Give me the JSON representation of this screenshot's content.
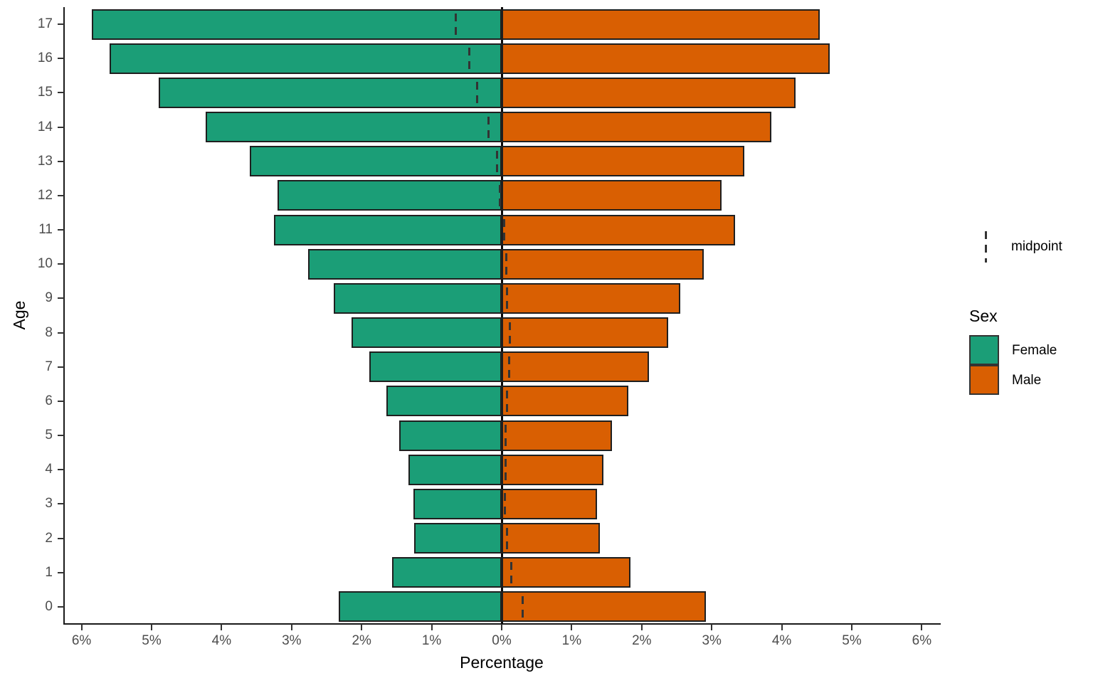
{
  "chart_data": {
    "type": "bar",
    "subtype": "population_pyramid",
    "orientation": "horizontal",
    "title": "",
    "xlabel": "Percentage",
    "ylabel": "Age",
    "categories": [
      "17",
      "16",
      "15",
      "14",
      "13",
      "12",
      "11",
      "10",
      "9",
      "8",
      "7",
      "6",
      "5",
      "4",
      "3",
      "2",
      "1",
      "0"
    ],
    "series": [
      {
        "name": "Female",
        "color": "#1b9e77",
        "values": [
          5.85,
          5.6,
          4.9,
          4.23,
          3.6,
          3.2,
          3.25,
          2.76,
          2.4,
          2.14,
          1.89,
          1.65,
          1.46,
          1.33,
          1.26,
          1.25,
          1.56,
          2.33
        ]
      },
      {
        "name": "Male",
        "color": "#d95f02",
        "values": [
          4.54,
          4.68,
          4.2,
          3.85,
          3.47,
          3.14,
          3.33,
          2.89,
          2.55,
          2.38,
          2.1,
          1.81,
          1.58,
          1.45,
          1.36,
          1.4,
          1.84,
          2.92
        ]
      }
    ],
    "midpoints": [
      -0.655,
      -0.46,
      -0.35,
      -0.19,
      -0.065,
      -0.03,
      0.04,
      0.065,
      0.075,
      0.12,
      0.105,
      0.08,
      0.06,
      0.06,
      0.05,
      0.075,
      0.14,
      0.295
    ],
    "x_axis": {
      "max": 6.25,
      "ticks": [
        {
          "value": -6,
          "label": "6%"
        },
        {
          "value": -5,
          "label": "5%"
        },
        {
          "value": -4,
          "label": "4%"
        },
        {
          "value": -3,
          "label": "3%"
        },
        {
          "value": -2,
          "label": "2%"
        },
        {
          "value": -1,
          "label": "1%"
        },
        {
          "value": 0,
          "label": "0%"
        },
        {
          "value": 1,
          "label": "1%"
        },
        {
          "value": 2,
          "label": "2%"
        },
        {
          "value": 3,
          "label": "3%"
        },
        {
          "value": 4,
          "label": "4%"
        },
        {
          "value": 5,
          "label": "5%"
        },
        {
          "value": 6,
          "label": "6%"
        }
      ]
    },
    "legend": {
      "midpoint_label": "midpoint",
      "sex_title": "Sex"
    },
    "colors": {
      "female": "#1b9e77",
      "male": "#d95f02",
      "bar_outline": "#1f1f1f",
      "axis_line": "#1a1a1a",
      "axis_tick": "#333333",
      "axis_text": "#4d4d4d",
      "midpoint_dash": "#333333",
      "zero_line": "#0a0a0a",
      "background": "#ffffff"
    },
    "layout": {
      "grid": false,
      "legend_position": "right"
    }
  }
}
